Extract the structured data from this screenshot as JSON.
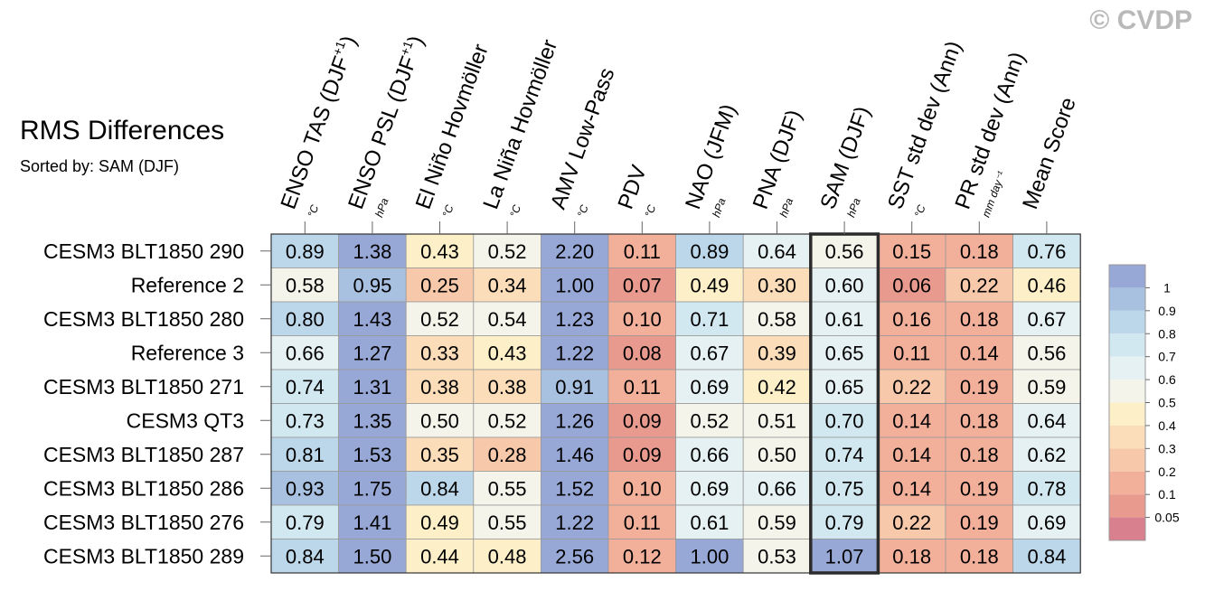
{
  "watermark": "© CVDP",
  "chart_data": {
    "type": "heatmap",
    "title": "RMS Differences",
    "subtitle": "Sorted by: SAM (DJF)",
    "columns": [
      {
        "label": "ENSO TAS (DJF",
        "sup": "+1",
        "close": ")",
        "unit": "°C"
      },
      {
        "label": "ENSO PSL (DJF",
        "sup": "+1",
        "close": ")",
        "unit": "hPa"
      },
      {
        "label": "El Niño Hovmöller",
        "sup": "",
        "close": "",
        "unit": "°C"
      },
      {
        "label": "La Niña Hovmöller",
        "sup": "",
        "close": "",
        "unit": "°C"
      },
      {
        "label": "AMV Low-Pass",
        "sup": "",
        "close": "",
        "unit": "°C"
      },
      {
        "label": "PDV",
        "sup": "",
        "close": "",
        "unit": "°C"
      },
      {
        "label": "NAO (JFM)",
        "sup": "",
        "close": "",
        "unit": "hPa"
      },
      {
        "label": "PNA (DJF)",
        "sup": "",
        "close": "",
        "unit": "hPa"
      },
      {
        "label": "SAM (DJF)",
        "sup": "",
        "close": "",
        "unit": "hPa"
      },
      {
        "label": "SST std dev (Ann)",
        "sup": "",
        "close": "",
        "unit": "°C"
      },
      {
        "label": "PR std dev (Ann)",
        "sup": "",
        "close": "",
        "unit": "mm day⁻¹"
      },
      {
        "label": "Mean Score",
        "sup": "",
        "close": "",
        "unit": ""
      }
    ],
    "rows": [
      "CESM3 BLT1850 290",
      "Reference 2",
      "CESM3 BLT1850 280",
      "Reference 3",
      "CESM3 BLT1850 271",
      "CESM3 QT3",
      "CESM3 BLT1850 287",
      "CESM3 BLT1850 286",
      "CESM3 BLT1850 276",
      "CESM3 BLT1850 289"
    ],
    "values": [
      [
        0.89,
        1.38,
        0.43,
        0.52,
        2.2,
        0.11,
        0.89,
        0.64,
        0.56,
        0.15,
        0.18,
        0.76
      ],
      [
        0.58,
        0.95,
        0.25,
        0.34,
        1.0,
        0.07,
        0.49,
        0.3,
        0.6,
        0.06,
        0.22,
        0.46
      ],
      [
        0.8,
        1.43,
        0.52,
        0.54,
        1.23,
        0.1,
        0.71,
        0.58,
        0.61,
        0.16,
        0.18,
        0.67
      ],
      [
        0.66,
        1.27,
        0.33,
        0.43,
        1.22,
        0.08,
        0.67,
        0.39,
        0.65,
        0.11,
        0.14,
        0.56
      ],
      [
        0.74,
        1.31,
        0.38,
        0.38,
        0.91,
        0.11,
        0.69,
        0.42,
        0.65,
        0.22,
        0.19,
        0.59
      ],
      [
        0.73,
        1.35,
        0.5,
        0.52,
        1.26,
        0.09,
        0.52,
        0.51,
        0.7,
        0.14,
        0.18,
        0.64
      ],
      [
        0.81,
        1.53,
        0.35,
        0.28,
        1.46,
        0.09,
        0.66,
        0.5,
        0.74,
        0.14,
        0.18,
        0.62
      ],
      [
        0.93,
        1.75,
        0.84,
        0.55,
        1.52,
        0.1,
        0.69,
        0.66,
        0.75,
        0.14,
        0.19,
        0.78
      ],
      [
        0.79,
        1.41,
        0.49,
        0.55,
        1.22,
        0.11,
        0.61,
        0.59,
        0.79,
        0.22,
        0.19,
        0.69
      ],
      [
        0.84,
        1.5,
        0.44,
        0.48,
        2.56,
        0.12,
        1.0,
        0.53,
        1.07,
        0.18,
        0.18,
        0.84
      ]
    ],
    "sorted_column": "SAM (DJF)",
    "colorbar": {
      "levels": [
        0.05,
        0.1,
        0.2,
        0.3,
        0.4,
        0.5,
        0.6,
        0.7,
        0.8,
        0.9,
        1
      ],
      "colors": [
        "#d9808f",
        "#e99a8e",
        "#f2b09b",
        "#f8c8aa",
        "#fbddba",
        "#fdf0c9",
        "#f5f4ea",
        "#e5f1f3",
        "#d2e8f1",
        "#bcd7ea",
        "#a9c1e1",
        "#97a8d6"
      ],
      "tick_labels": [
        "1",
        "0.9",
        "0.8",
        "0.7",
        "0.6",
        "0.5",
        "0.4",
        "0.3",
        "0.2",
        "0.1",
        "0.05"
      ]
    }
  }
}
